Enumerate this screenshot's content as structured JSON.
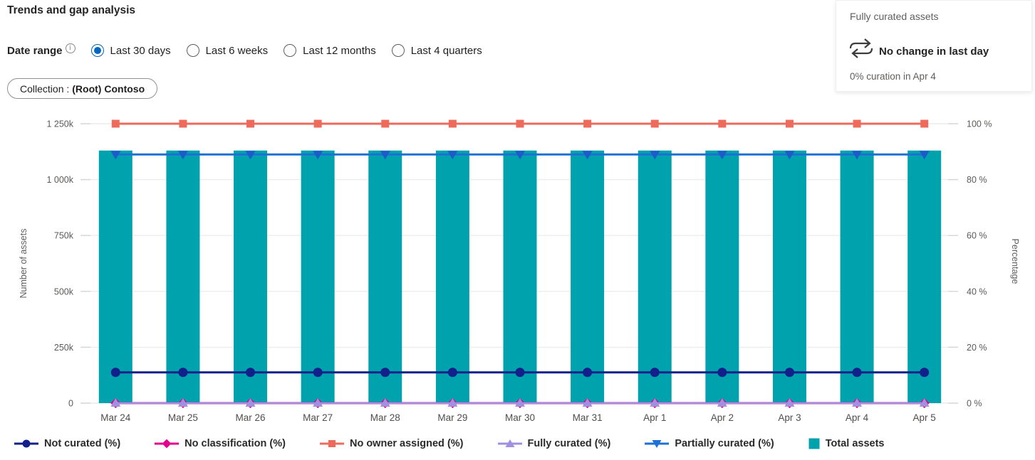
{
  "page": {
    "title": "Trends and gap analysis"
  },
  "date_range": {
    "label": "Date range",
    "info_icon": "info-circle-icon",
    "options": [
      {
        "label": "Last 30 days",
        "selected": true
      },
      {
        "label": "Last 6 weeks",
        "selected": false
      },
      {
        "label": "Last 12 months",
        "selected": false
      },
      {
        "label": "Last 4 quarters",
        "selected": false
      }
    ]
  },
  "filter_pill": {
    "prefix": "Collection :",
    "value": "(Root) Contoso"
  },
  "summary_card": {
    "title": "Fully curated assets",
    "icon": "swap-arrows-icon",
    "headline": "No change in last day",
    "subtext": "0% curation in Apr 4"
  },
  "chart_data": {
    "type": "combo",
    "title": "Trends and gap analysis",
    "categories": [
      "Mar 24",
      "Mar 25",
      "Mar 26",
      "Mar 27",
      "Mar 28",
      "Mar 29",
      "Mar 30",
      "Mar 31",
      "Apr 1",
      "Apr 2",
      "Apr 3",
      "Apr 4",
      "Apr 5"
    ],
    "bar_series": {
      "name": "Total assets",
      "color": "#00A2AD",
      "yaxis": "left",
      "values": [
        1130000,
        1130000,
        1130000,
        1130000,
        1130000,
        1130000,
        1130000,
        1130000,
        1130000,
        1130000,
        1130000,
        1130000,
        1130000
      ]
    },
    "line_series": [
      {
        "name": "No classification (%)",
        "color": "#E3008C",
        "marker": "diamond",
        "yaxis": "right",
        "values": [
          0,
          0,
          0,
          0,
          0,
          0,
          0,
          0,
          0,
          0,
          0,
          0,
          0
        ]
      },
      {
        "name": "No owner assigned (%)",
        "color": "#EE6B5C",
        "marker": "square",
        "yaxis": "right",
        "values": [
          100,
          100,
          100,
          100,
          100,
          100,
          100,
          100,
          100,
          100,
          100,
          100,
          100
        ]
      },
      {
        "name": "Partially curated (%)",
        "color": "#1F70D5",
        "marker_color": "#1A5DC8",
        "marker": "triangle-down",
        "yaxis": "right",
        "values": [
          89,
          89,
          89,
          89,
          89,
          89,
          89,
          89,
          89,
          89,
          89,
          89,
          89
        ]
      },
      {
        "name": "Not curated (%)",
        "color": "#131F8B",
        "marker": "circle",
        "yaxis": "right",
        "values": [
          11,
          11,
          11,
          11,
          11,
          11,
          11,
          11,
          11,
          11,
          11,
          11,
          11
        ]
      },
      {
        "name": "Fully curated (%)",
        "color": "#A18FE0",
        "marker": "triangle-up",
        "yaxis": "right",
        "values": [
          0,
          0,
          0,
          0,
          0,
          0,
          0,
          0,
          0,
          0,
          0,
          0,
          0
        ]
      }
    ],
    "left_axis": {
      "label": "Number of assets",
      "min": 0,
      "max": 1250000,
      "ticks": [
        "0",
        "250k",
        "500k",
        "750k",
        "1 000k",
        "1 250k"
      ]
    },
    "right_axis": {
      "label": "Percentage",
      "min": 0,
      "max": 100,
      "ticks": [
        "0 %",
        "20 %",
        "40 %",
        "60 %",
        "80 %",
        "100 %"
      ]
    },
    "grid": true,
    "legend_position": "bottom"
  },
  "legend": [
    {
      "label": "Not curated (%)",
      "marker": "circle",
      "color": "#131F8B",
      "type": "line"
    },
    {
      "label": "No classification (%)",
      "marker": "diamond",
      "color": "#E3008C",
      "type": "line"
    },
    {
      "label": "No owner assigned (%)",
      "marker": "square",
      "color": "#EE6B5C",
      "type": "line"
    },
    {
      "label": "Fully curated (%)",
      "marker": "triangle-up",
      "color": "#A18FE0",
      "type": "line"
    },
    {
      "label": "Partially curated (%)",
      "marker": "triangle-down",
      "color": "#1F70D5",
      "type": "line"
    },
    {
      "label": "Total assets",
      "marker": "square-fill",
      "color": "#00A2AD",
      "type": "bar"
    }
  ],
  "colors": {
    "accent": "#0067c0",
    "bar": "#00A2AD",
    "grid": "#ECECEC"
  }
}
